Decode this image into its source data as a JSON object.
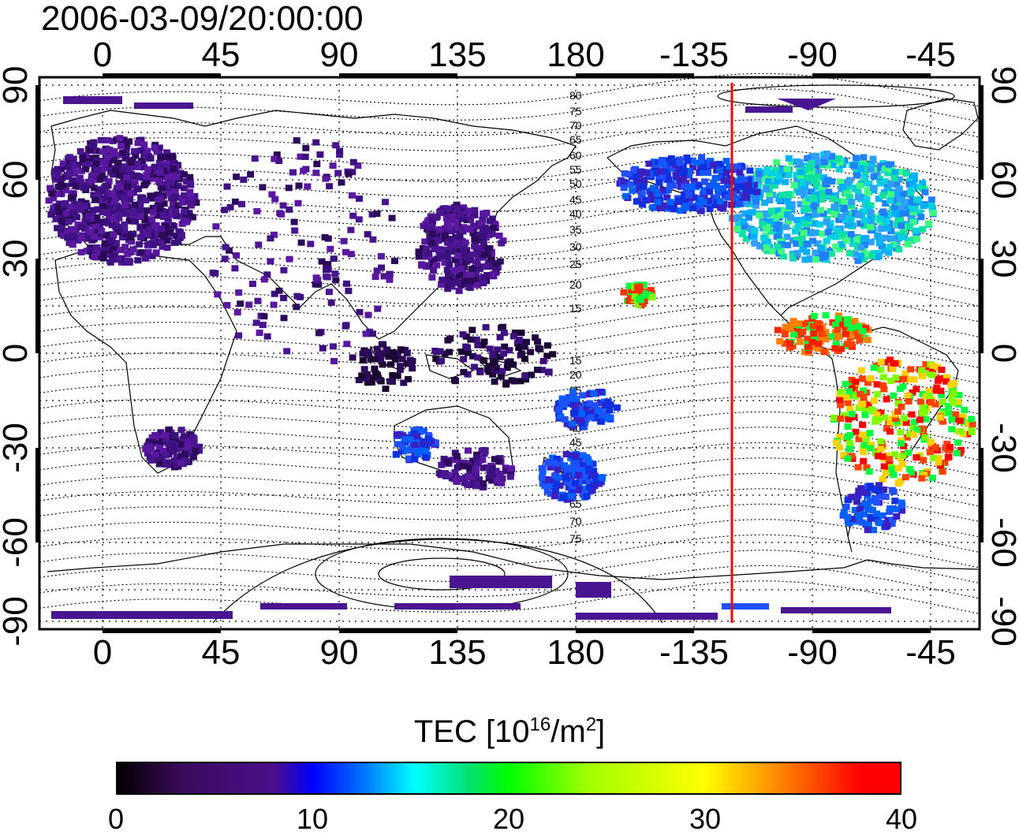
{
  "title": "2006-03-09/20:00:00",
  "map": {
    "top_lon_ticks": [
      "0",
      "45",
      "90",
      "135",
      "180",
      "-135",
      "-90",
      "-45"
    ],
    "bottom_lon_ticks": [
      "0",
      "45",
      "90",
      "135",
      "180",
      "-135",
      "-90",
      "-45"
    ],
    "left_lat_ticks": [
      "90",
      "60",
      "30",
      "0",
      "-30",
      "-60",
      "-90"
    ],
    "right_lat_ticks": [
      "90",
      "60",
      "30",
      "0",
      "-30",
      "-60",
      "-90"
    ],
    "contour_labels": [
      "80",
      "75",
      "70",
      "65",
      "60",
      "55",
      "50",
      "45",
      "40",
      "35",
      "30",
      "25",
      "20",
      "15",
      "15",
      "20",
      "25",
      "30",
      "35",
      "40",
      "45",
      "50",
      "55",
      "60",
      "65",
      "70",
      "75"
    ],
    "terminator_color": "#ff0000"
  },
  "colorbar": {
    "title_prefix": "TEC  [10",
    "title_exp1": "16",
    "title_mid": "/m",
    "title_exp2": "2",
    "title_suffix": "]",
    "ticks": [
      "0",
      "10",
      "20",
      "30",
      "40"
    ],
    "range": [
      0,
      40
    ]
  }
}
